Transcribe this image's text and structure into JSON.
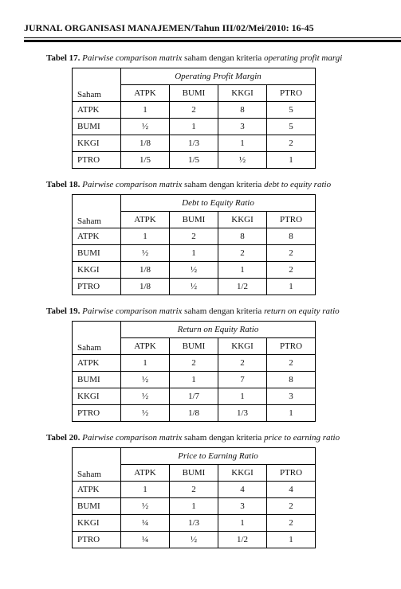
{
  "header": {
    "journal_line": "JURNAL ORGANISASI MANAJEMEN/Tahun III/02/Mei/2010: 16-45"
  },
  "columns": [
    "ATPK",
    "BUMI",
    "KKGI",
    "PTRO"
  ],
  "row_labels": [
    "ATPK",
    "BUMI",
    "KKGI",
    "PTRO"
  ],
  "saham_label": "Saham",
  "tables": [
    {
      "caption_bold": "Tabel 17.",
      "caption_ital1": "Pairwise comparison matrix",
      "caption_mid": " saham dengan kriteria ",
      "caption_ital2": "operating profit margi",
      "group_header": "Operating Profit Margin",
      "rows": [
        [
          "1",
          "2",
          "8",
          "5"
        ],
        [
          "½",
          "1",
          "3",
          "5"
        ],
        [
          "1/8",
          "1/3",
          "1",
          "2"
        ],
        [
          "1/5",
          "1/5",
          "½",
          "1"
        ]
      ]
    },
    {
      "caption_bold": "Tabel 18.",
      "caption_ital1": "Pairwise comparison matrix",
      "caption_mid": " saham dengan kriteria ",
      "caption_ital2": "debt to equity ratio",
      "group_header": "Debt to Equity Ratio",
      "rows": [
        [
          "1",
          "2",
          "8",
          "8"
        ],
        [
          "½",
          "1",
          "2",
          "2"
        ],
        [
          "1/8",
          "½",
          "1",
          "2"
        ],
        [
          "1/8",
          "½",
          "1/2",
          "1"
        ]
      ]
    },
    {
      "caption_bold": "Tabel 19.",
      "caption_ital1": "Pairwise comparison matrix",
      "caption_mid": " saham dengan kriteria ",
      "caption_ital2": "return on equity ratio",
      "group_header": "Return on Equity Ratio",
      "rows": [
        [
          "1",
          "2",
          "2",
          "2"
        ],
        [
          "½",
          "1",
          "7",
          "8"
        ],
        [
          "½",
          "1/7",
          "1",
          "3"
        ],
        [
          "½",
          "1/8",
          "1/3",
          "1"
        ]
      ]
    },
    {
      "caption_bold": "Tabel 20.",
      "caption_ital1": "Pairwise comparison matrix",
      "caption_mid": " saham dengan kriteria ",
      "caption_ital2": "price to earning ratio",
      "group_header": "Price to Earning Ratio",
      "rows": [
        [
          "1",
          "2",
          "4",
          "4"
        ],
        [
          "½",
          "1",
          "3",
          "2"
        ],
        [
          "¼",
          "1/3",
          "1",
          "2"
        ],
        [
          "¼",
          "½",
          "1/2",
          "1"
        ]
      ]
    }
  ]
}
